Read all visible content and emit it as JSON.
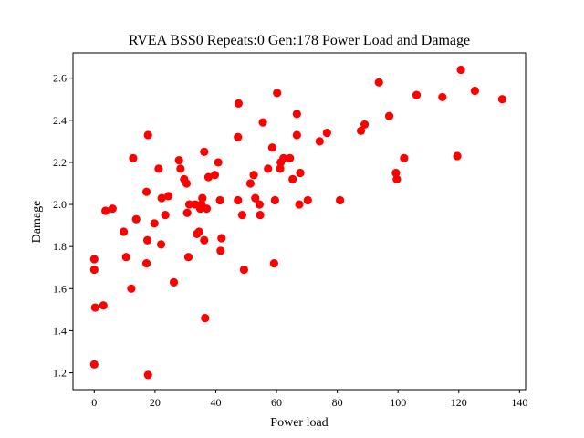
{
  "chart_data": {
    "type": "scatter",
    "title": "RVEA BSS0 Repeats:0 Gen:178 Power Load and Damage",
    "xlabel": "Power load",
    "ylabel": "Damage",
    "xlim": [
      -7,
      142
    ],
    "ylim": [
      1.12,
      2.72
    ],
    "xticks": [
      0,
      20,
      40,
      60,
      80,
      100,
      120,
      140
    ],
    "yticks": [
      1.2,
      1.4,
      1.6,
      1.8,
      2.0,
      2.2,
      2.4,
      2.6
    ],
    "ytick_labels": [
      "1.2",
      "1.4",
      "1.6",
      "1.8",
      "2.0",
      "2.2",
      "2.4",
      "2.6"
    ],
    "grid": false,
    "marker_color": "#ff0000",
    "points": [
      [
        0,
        1.74
      ],
      [
        0,
        1.69
      ],
      [
        0.3,
        1.51
      ],
      [
        0,
        1.24
      ],
      [
        3,
        1.52
      ],
      [
        3.7,
        1.97
      ],
      [
        6,
        1.98
      ],
      [
        9.7,
        1.87
      ],
      [
        10.5,
        1.75
      ],
      [
        12.2,
        1.6
      ],
      [
        12.8,
        2.22
      ],
      [
        13.8,
        1.93
      ],
      [
        17.2,
        2.06
      ],
      [
        17.5,
        1.83
      ],
      [
        17.2,
        1.72
      ],
      [
        17.7,
        2.33
      ],
      [
        17.7,
        1.19
      ],
      [
        19.8,
        1.91
      ],
      [
        21.2,
        2.17
      ],
      [
        22,
        1.81
      ],
      [
        22.2,
        2.03
      ],
      [
        23.4,
        1.95
      ],
      [
        24.4,
        2.04
      ],
      [
        26.2,
        1.63
      ],
      [
        27.9,
        2.21
      ],
      [
        28.4,
        2.17
      ],
      [
        29.6,
        2.12
      ],
      [
        30.4,
        2.1
      ],
      [
        30.6,
        1.96
      ],
      [
        31,
        1.75
      ],
      [
        31.3,
        2.0
      ],
      [
        33.2,
        2.0
      ],
      [
        33.8,
        1.86
      ],
      [
        34.5,
        1.87
      ],
      [
        34.9,
        1.98
      ],
      [
        35.3,
        2.0
      ],
      [
        35.6,
        2.03
      ],
      [
        36.2,
        1.83
      ],
      [
        36.2,
        2.25
      ],
      [
        36.5,
        1.46
      ],
      [
        37,
        1.98
      ],
      [
        37.6,
        2.13
      ],
      [
        39.7,
        2.14
      ],
      [
        40.8,
        2.2
      ],
      [
        41.4,
        2.02
      ],
      [
        41.6,
        1.78
      ],
      [
        41.9,
        1.84
      ],
      [
        47.3,
        2.02
      ],
      [
        47.3,
        2.32
      ],
      [
        47.5,
        2.48
      ],
      [
        48.7,
        1.95
      ],
      [
        49.3,
        1.69
      ],
      [
        51.4,
        2.1
      ],
      [
        52.5,
        2.14
      ],
      [
        53,
        2.03
      ],
      [
        54.6,
        1.95
      ],
      [
        54.4,
        2.0
      ],
      [
        55.5,
        2.39
      ],
      [
        57.2,
        2.17
      ],
      [
        58.6,
        2.27
      ],
      [
        59.2,
        1.72
      ],
      [
        59.5,
        2.02
      ],
      [
        60.2,
        2.53
      ],
      [
        61.2,
        2.17
      ],
      [
        61.4,
        2.2
      ],
      [
        62.3,
        2.22
      ],
      [
        64.4,
        2.22
      ],
      [
        65.3,
        2.12
      ],
      [
        66.7,
        2.43
      ],
      [
        66.7,
        2.33
      ],
      [
        67.5,
        2.0
      ],
      [
        67.8,
        2.15
      ],
      [
        70.3,
        2.02
      ],
      [
        74.2,
        2.3
      ],
      [
        76.6,
        2.34
      ],
      [
        80.9,
        2.02
      ],
      [
        87.8,
        2.35
      ],
      [
        89,
        2.38
      ],
      [
        93.7,
        2.58
      ],
      [
        97.1,
        2.42
      ],
      [
        99.3,
        2.15
      ],
      [
        99.6,
        2.12
      ],
      [
        102,
        2.22
      ],
      [
        106.1,
        2.52
      ],
      [
        114.6,
        2.51
      ],
      [
        119.5,
        2.23
      ],
      [
        120.7,
        2.64
      ],
      [
        125.3,
        2.54
      ],
      [
        134.3,
        2.5
      ]
    ]
  }
}
